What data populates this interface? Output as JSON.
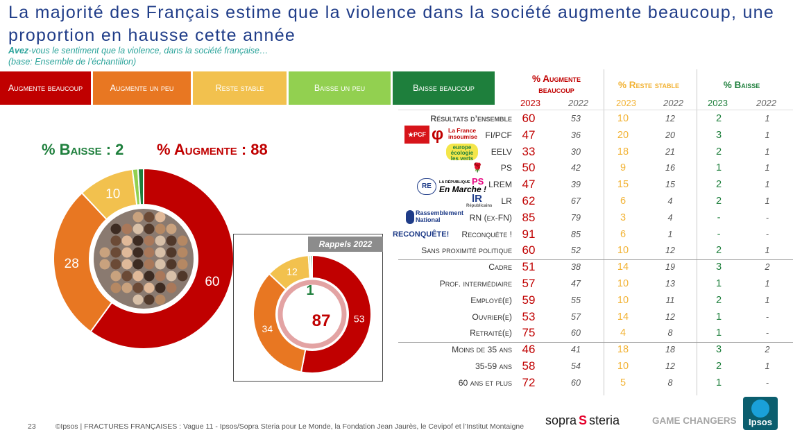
{
  "title": "La majorité des Français estime que la violence dans la société augmente beaucoup, une proportion en hausse cette année",
  "subtitle_emph": "Avez",
  "subtitle_rest": "-vous le sentiment que la violence, dans la société française…",
  "base": "(base: Ensemble de l’échantillon)",
  "legend": [
    {
      "label": "Augmente beaucoup",
      "color": "#c00000"
    },
    {
      "label": "Augmente un peu",
      "color": "#e87722"
    },
    {
      "label": "Reste stable",
      "color": "#f2c14e"
    },
    {
      "label": "Baisse un peu",
      "color": "#92d050"
    },
    {
      "label": "Baisse beaucoup",
      "color": "#1e7f3c"
    }
  ],
  "label_baisse": "% Baisse : 2",
  "label_augmente": "% Augmente : 88",
  "rappels_label": "Rappels 2022",
  "chart_data": [
    {
      "type": "pie",
      "name": "2023",
      "categories": [
        "Augmente beaucoup",
        "Augmente un peu",
        "Reste stable",
        "Baisse un peu",
        "Baisse beaucoup"
      ],
      "values": [
        60,
        28,
        10,
        1,
        1
      ],
      "labels": [
        "60",
        "28",
        "10",
        "",
        ""
      ],
      "colors": [
        "#c00000",
        "#e87722",
        "#f2c14e",
        "#92d050",
        "#1e7f3c"
      ]
    },
    {
      "type": "pie",
      "name": "Rappels 2022",
      "categories": [
        "Augmente beaucoup",
        "Augmente un peu",
        "Reste stable",
        "Baisse un peu",
        "Baisse beaucoup"
      ],
      "values": [
        53,
        34,
        12,
        0.5,
        0.5
      ],
      "labels": [
        "53",
        "34",
        "12",
        "",
        ""
      ],
      "center_top": "1",
      "center_bottom": "87",
      "colors": [
        "#c00000",
        "#e87722",
        "#f2c14e",
        "#92d050",
        "#1e7f3c"
      ]
    },
    {
      "type": "table",
      "headers": {
        "augmente": "% Augmente beaucoup",
        "stable": "% Reste stable",
        "baisse": "% Baisse",
        "year_a": "2023",
        "year_b": "2022"
      },
      "rows": [
        {
          "label": "Résultats d’ensemble",
          "logo": "",
          "a23": "60",
          "a22": "53",
          "s23": "10",
          "s22": "12",
          "b23": "2",
          "b22": "1"
        },
        {
          "label": "FI/PCF",
          "logo": "PCF  La France insoumise",
          "a23": "47",
          "a22": "36",
          "s23": "20",
          "s22": "20",
          "b23": "3",
          "b22": "1"
        },
        {
          "label": "EELV",
          "logo": "europe écologie les verts",
          "a23": "33",
          "a22": "30",
          "s23": "18",
          "s22": "21",
          "b23": "2",
          "b22": "1"
        },
        {
          "label": "PS",
          "logo": "PS",
          "a23": "50",
          "a22": "42",
          "s23": "9",
          "s22": "16",
          "b23": "1",
          "b22": "1"
        },
        {
          "label": "LREM",
          "logo": "RE  En Marche !",
          "a23": "47",
          "a22": "39",
          "s23": "15",
          "s22": "15",
          "b23": "2",
          "b22": "1"
        },
        {
          "label": "LR",
          "logo": "LR",
          "a23": "62",
          "a22": "67",
          "s23": "6",
          "s22": "4",
          "b23": "2",
          "b22": "1"
        },
        {
          "label": "RN (ex-FN)",
          "logo": "Rassemblement National",
          "a23": "85",
          "a22": "79",
          "s23": "3",
          "s22": "4",
          "b23": "-",
          "b22": "-"
        },
        {
          "label": "Reconquête !",
          "logo": "RECONQUÊTE!",
          "a23": "91",
          "a22": "85",
          "s23": "6",
          "s22": "1",
          "b23": "-",
          "b22": "-"
        },
        {
          "label": "Sans proximité politique",
          "logo": "",
          "a23": "60",
          "a22": "52",
          "s23": "10",
          "s22": "12",
          "b23": "2",
          "b22": "1"
        },
        {
          "label": "Cadre",
          "logo": "",
          "a23": "51",
          "a22": "38",
          "s23": "14",
          "s22": "19",
          "b23": "3",
          "b22": "2"
        },
        {
          "label": "Prof. intermédiaire",
          "logo": "",
          "a23": "57",
          "a22": "47",
          "s23": "10",
          "s22": "13",
          "b23": "1",
          "b22": "1"
        },
        {
          "label": "Employé(e)",
          "logo": "",
          "a23": "59",
          "a22": "55",
          "s23": "10",
          "s22": "11",
          "b23": "2",
          "b22": "1"
        },
        {
          "label": "Ouvrier(e)",
          "logo": "",
          "a23": "53",
          "a22": "57",
          "s23": "14",
          "s22": "12",
          "b23": "1",
          "b22": "-"
        },
        {
          "label": "Retraité(e)",
          "logo": "",
          "a23": "75",
          "a22": "60",
          "s23": "4",
          "s22": "8",
          "b23": "1",
          "b22": "-"
        },
        {
          "label": "Moins de 35 ans",
          "logo": "",
          "a23": "46",
          "a22": "41",
          "s23": "18",
          "s22": "18",
          "b23": "3",
          "b22": "2"
        },
        {
          "label": "35-59 ans",
          "logo": "",
          "a23": "58",
          "a22": "54",
          "s23": "10",
          "s22": "12",
          "b23": "2",
          "b22": "1"
        },
        {
          "label": "60 ans et plus",
          "logo": "",
          "a23": "72",
          "a22": "60",
          "s23": "5",
          "s22": "8",
          "b23": "1",
          "b22": "-"
        }
      ]
    }
  ],
  "colors": {
    "augmente": "#c00000",
    "stable": "#f2b233",
    "baisse": "#1e7f3c",
    "title": "#1f3c88"
  },
  "footer": {
    "page": "23",
    "text": "©Ipsos | FRACTURES FRANÇAISES : Vague 11 - Ipsos/Sopra Steria pour Le Monde, la Fondation Jean Jaurès, le Cevipof et l’Institut Montaigne",
    "brand_sopra": "sopra",
    "brand_steria": "steria",
    "game_changers": "GAME CHANGERS",
    "ipsos": "Ipsos"
  }
}
